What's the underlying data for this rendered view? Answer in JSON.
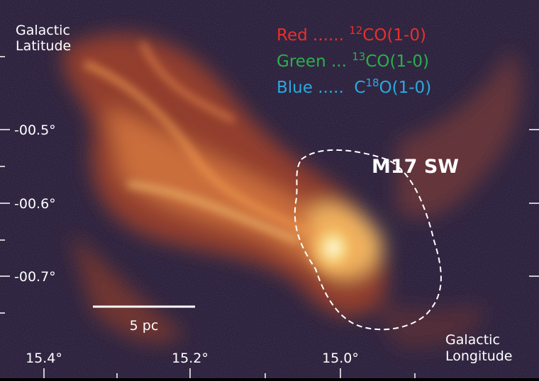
{
  "y_axis": {
    "title": "Galactic Latitude",
    "ticks": [
      "-00.5°",
      "-00.6°",
      "-00.7°"
    ]
  },
  "x_axis": {
    "title": "Galactic Longitude",
    "ticks": [
      "15.4°",
      "15.2°",
      "15.0°"
    ]
  },
  "legend": [
    {
      "color": "#e8302a",
      "parts": [
        {
          "text": "Red ...... "
        },
        {
          "text": "12",
          "sup": true
        },
        {
          "text": "CO(1-0)"
        }
      ]
    },
    {
      "color": "#27b24a",
      "parts": [
        {
          "text": "Green ... "
        },
        {
          "text": "13",
          "sup": true
        },
        {
          "text": "CO(1-0)"
        }
      ]
    },
    {
      "color": "#2aa9e0",
      "parts": [
        {
          "text": "Blue .....  C"
        },
        {
          "text": "18",
          "sup": true
        },
        {
          "text": "O(1-0)"
        }
      ]
    }
  ],
  "region_label": "M17 SW",
  "scale_bar": "5 pc"
}
